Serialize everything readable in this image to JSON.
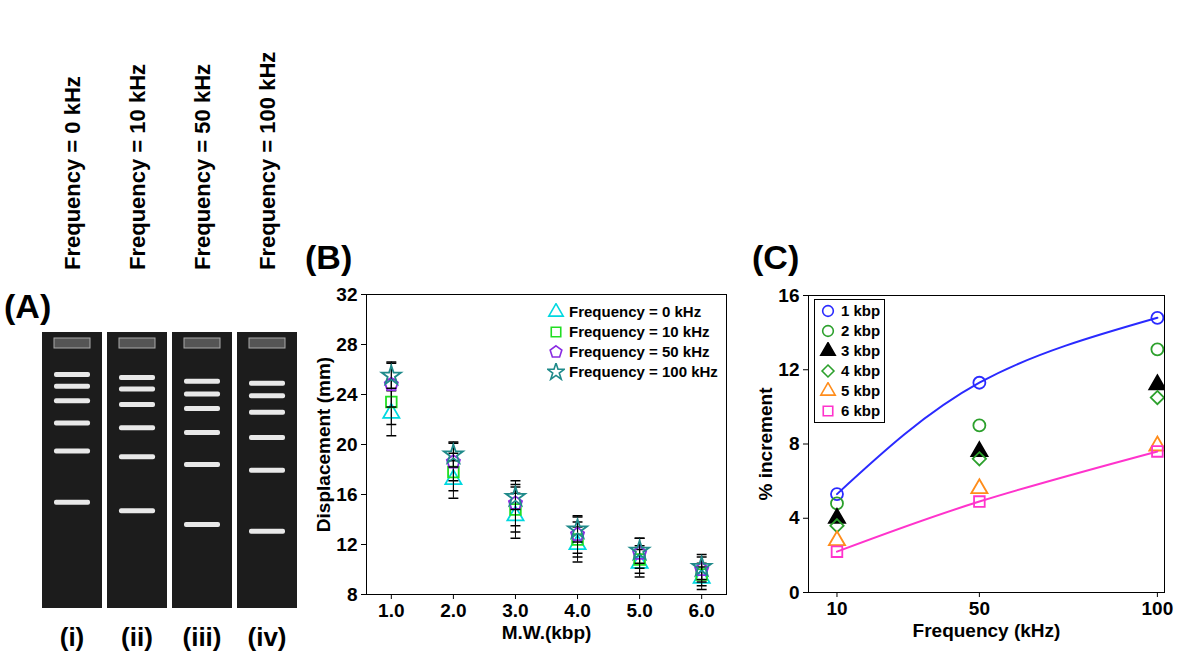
{
  "chart_data": [
    {
      "type": "gel",
      "panel": "(A)",
      "lanes": [
        "Frequency = 0 kHz",
        "Frequency = 10 kHz",
        "Frequency = 50 kHz",
        "Frequency = 100 kHz"
      ],
      "lane_labels": [
        "(i)",
        "(ii)",
        "(iii)",
        "(iv)"
      ]
    },
    {
      "type": "scatter",
      "panel": "(B)",
      "x_label": "M.W.(kbp)",
      "y_label": "Displacement (mm)",
      "x": [
        1,
        2,
        3,
        4,
        5,
        6
      ],
      "xlim": [
        0.6,
        6.4
      ],
      "xticks": [
        1,
        2,
        3,
        4,
        5,
        6
      ],
      "ylim": [
        8,
        32
      ],
      "yticks": [
        8,
        12,
        16,
        20,
        24,
        28,
        32
      ],
      "legend": "top-right",
      "series": [
        {
          "name": "Frequency = 0 kHz",
          "color": "#00d8e0",
          "marker": "triangle-open",
          "values": [
            22.5,
            17.2,
            14.3,
            12.0,
            10.5,
            9.3
          ],
          "errors": [
            1.8,
            1.5,
            1.8,
            1.4,
            1.1,
            0.9
          ]
        },
        {
          "name": "Frequency = 10 kHz",
          "color": "#22dd22",
          "marker": "square-open",
          "values": [
            23.4,
            17.8,
            14.8,
            12.4,
            10.8,
            9.6
          ],
          "errors": [
            1.8,
            1.5,
            1.8,
            1.4,
            1.1,
            0.9
          ]
        },
        {
          "name": "Frequency = 50 kHz",
          "color": "#8a2be2",
          "marker": "pentagon-open",
          "values": [
            24.8,
            18.6,
            15.3,
            12.8,
            11.3,
            10.0
          ],
          "errors": [
            1.8,
            1.5,
            1.8,
            1.5,
            1.2,
            1.0
          ]
        },
        {
          "name": "Frequency = 100 kHz",
          "color": "#1f8a8a",
          "marker": "star-open",
          "values": [
            25.5,
            19.2,
            15.8,
            13.2,
            11.5,
            10.2
          ],
          "errors": [
            1.0,
            1.0,
            1.0,
            1.0,
            1.0,
            1.0
          ]
        }
      ]
    },
    {
      "type": "scatter",
      "panel": "(C)",
      "x_label": "Frequency (kHz)",
      "y_label": "% increment",
      "x": [
        10,
        50,
        100
      ],
      "xlim": [
        2,
        102
      ],
      "xticks": [
        10,
        50,
        100
      ],
      "ylim": [
        0,
        16
      ],
      "yticks": [
        0,
        4,
        8,
        12,
        16
      ],
      "legend": "top-left",
      "series": [
        {
          "name": "1 kbp",
          "type": "line",
          "color": "#2a2aff",
          "marker": "circle-open",
          "values": [
            5.3,
            11.3,
            14.8
          ]
        },
        {
          "name": "2 kbp",
          "type": "scatter",
          "color": "#2ca02c",
          "marker": "circle-open",
          "values": [
            4.8,
            9.0,
            13.1
          ]
        },
        {
          "name": "3 kbp",
          "type": "scatter",
          "color": "#000000",
          "marker": "triangle-filled",
          "values": [
            4.0,
            7.6,
            11.2
          ]
        },
        {
          "name": "4 kbp",
          "type": "scatter",
          "color": "#2ca02c",
          "marker": "diamond-open",
          "values": [
            3.6,
            7.2,
            10.5
          ]
        },
        {
          "name": "5 kbp",
          "type": "scatter",
          "color": "#ff8c1a",
          "marker": "triangle-open",
          "values": [
            2.8,
            5.6,
            7.9
          ]
        },
        {
          "name": "6 kbp",
          "type": "line",
          "color": "#ff33cc",
          "marker": "square-open",
          "values": [
            2.2,
            4.9,
            7.6
          ]
        }
      ]
    }
  ]
}
